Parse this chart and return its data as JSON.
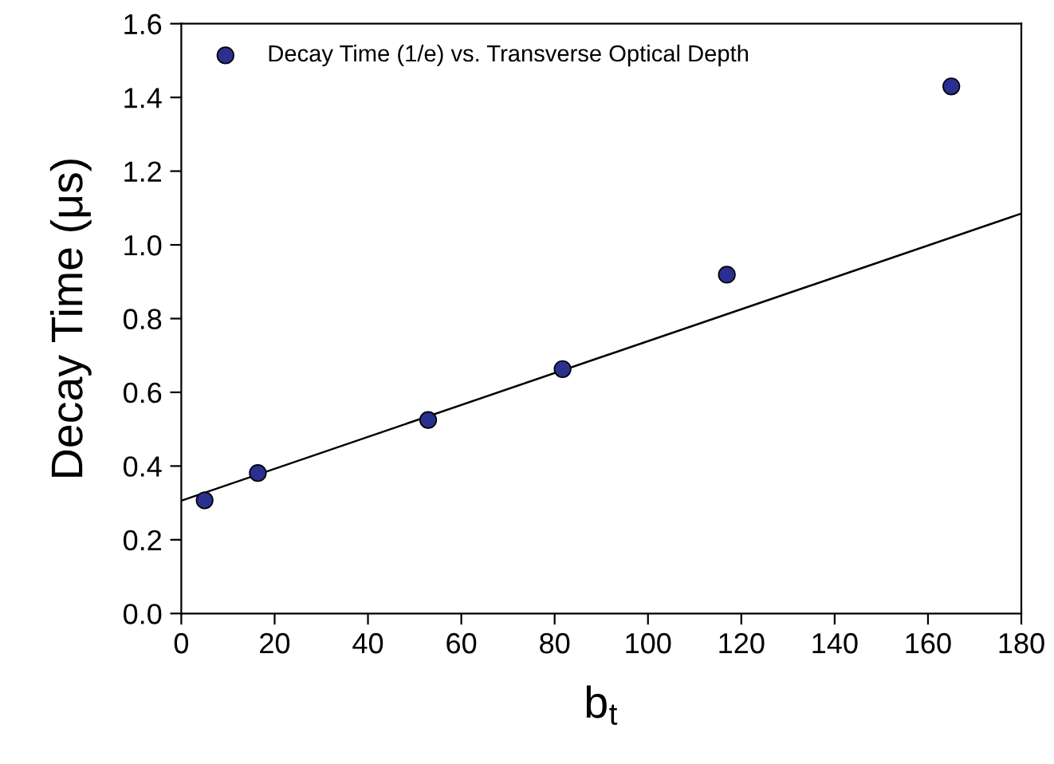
{
  "chart_data": {
    "type": "scatter",
    "xlabel": "b$_{t}$",
    "ylabel": "Decay Time (μs)",
    "xlim": [
      0,
      180
    ],
    "xticks": [
      0,
      20,
      40,
      60,
      80,
      100,
      120,
      140,
      160,
      180
    ],
    "ylim": [
      0,
      1.6
    ],
    "yticks": [
      {
        "value": 0,
        "label": "0.0"
      },
      {
        "value": 0.2,
        "label": "0.2"
      },
      {
        "value": 0.4,
        "label": "0.4"
      },
      {
        "value": 0.6,
        "label": "0.6"
      },
      {
        "value": 0.8,
        "label": "0.8"
      },
      {
        "value": 1.0,
        "label": "1.0"
      },
      {
        "value": 1.2,
        "label": "1.2"
      },
      {
        "value": 1.4,
        "label": "1.4"
      },
      {
        "value": 1.6,
        "label": "1.6"
      }
    ],
    "grid": false,
    "legend": "top left",
    "series": [
      {
        "name": "Decay Time (1/e) vs. Transverse Optical Depth",
        "marker": "circle",
        "color": "#2b2f8f",
        "x": [
          5.0,
          16.4,
          52.9,
          81.7,
          116.9,
          165
        ],
        "values": [
          0.307,
          0.381,
          0.525,
          0.663,
          0.919,
          1.43
        ]
      },
      {
        "type": "line",
        "color": "#000000",
        "line_style": "solid",
        "x": [
          0,
          180
        ],
        "values": [
          0.306,
          1.085
        ]
      }
    ]
  }
}
